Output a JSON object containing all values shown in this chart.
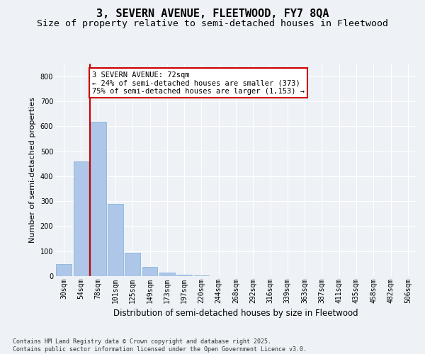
{
  "title1": "3, SEVERN AVENUE, FLEETWOOD, FY7 8QA",
  "title2": "Size of property relative to semi-detached houses in Fleetwood",
  "xlabel": "Distribution of semi-detached houses by size in Fleetwood",
  "ylabel": "Number of semi-detached properties",
  "categories": [
    "30sqm",
    "54sqm",
    "78sqm",
    "101sqm",
    "125sqm",
    "149sqm",
    "173sqm",
    "197sqm",
    "220sqm",
    "244sqm",
    "268sqm",
    "292sqm",
    "316sqm",
    "339sqm",
    "363sqm",
    "387sqm",
    "411sqm",
    "435sqm",
    "458sqm",
    "482sqm",
    "506sqm"
  ],
  "values": [
    47,
    460,
    617,
    288,
    93,
    36,
    13,
    7,
    4,
    0,
    0,
    0,
    0,
    0,
    0,
    0,
    0,
    0,
    0,
    0,
    0
  ],
  "bar_color": "#aec6e8",
  "bar_edge_color": "#7bafd4",
  "vline_color": "#cc0000",
  "annotation_text": "3 SEVERN AVENUE: 72sqm\n← 24% of semi-detached houses are smaller (373)\n75% of semi-detached houses are larger (1,153) →",
  "annotation_box_color": "#cc0000",
  "ylim": [
    0,
    850
  ],
  "yticks": [
    0,
    100,
    200,
    300,
    400,
    500,
    600,
    700,
    800
  ],
  "background_color": "#eef2f7",
  "plot_background": "#eef2f7",
  "grid_color": "#ffffff",
  "footer": "Contains HM Land Registry data © Crown copyright and database right 2025.\nContains public sector information licensed under the Open Government Licence v3.0.",
  "title1_fontsize": 11,
  "title2_fontsize": 9.5,
  "xlabel_fontsize": 8.5,
  "ylabel_fontsize": 8,
  "tick_fontsize": 7,
  "annotation_fontsize": 7.5,
  "footer_fontsize": 6
}
